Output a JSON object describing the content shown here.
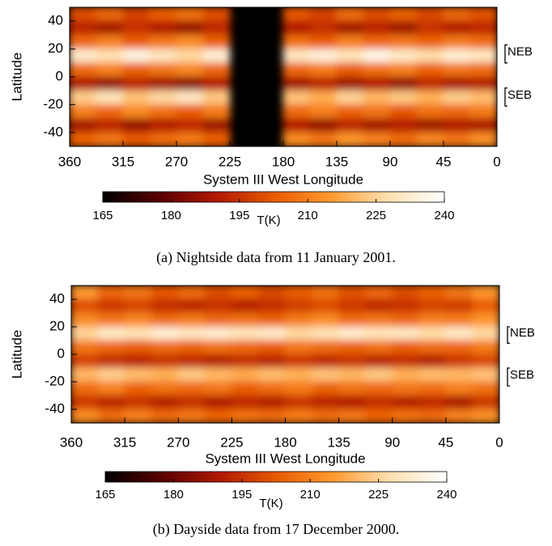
{
  "chart_data": [
    {
      "type": "heatmap",
      "caption": "(a) Nightside data from 11 January 2001.",
      "xlabel": "System III West Longitude",
      "ylabel": "Latitude",
      "x": [
        348.75,
        326.25,
        303.75,
        281.25,
        258.75,
        236.25,
        213.75,
        191.25,
        168.75,
        146.25,
        123.75,
        101.25,
        78.75,
        56.25,
        33.75,
        11.25
      ],
      "y": [
        45,
        35,
        25,
        15,
        5,
        -5,
        -15,
        -25,
        -35,
        -45
      ],
      "values": [
        [
          200,
          205,
          198,
          203,
          207,
          200,
          null,
          null,
          202,
          198,
          206,
          200,
          204,
          199,
          205,
          201
        ],
        [
          192,
          188,
          195,
          190,
          186,
          193,
          null,
          null,
          190,
          194,
          188,
          192,
          187,
          195,
          190,
          193
        ],
        [
          205,
          210,
          203,
          208,
          212,
          204,
          null,
          null,
          207,
          203,
          210,
          205,
          208,
          204,
          209,
          206
        ],
        [
          232,
          228,
          235,
          230,
          226,
          233,
          null,
          null,
          230,
          234,
          229,
          236,
          231,
          227,
          233,
          230
        ],
        [
          206,
          210,
          204,
          208,
          211,
          205,
          null,
          null,
          205,
          209,
          203,
          207,
          210,
          204,
          208,
          206
        ],
        [
          190,
          186,
          192,
          188,
          185,
          191,
          null,
          null,
          188,
          192,
          187,
          190,
          186,
          193,
          189,
          191
        ],
        [
          224,
          229,
          222,
          226,
          230,
          223,
          null,
          null,
          222,
          218,
          225,
          220,
          223,
          219,
          224,
          221
        ],
        [
          210,
          205,
          212,
          207,
          203,
          209,
          null,
          null,
          206,
          210,
          204,
          208,
          202,
          207,
          205,
          209
        ],
        [
          188,
          192,
          186,
          190,
          193,
          187,
          null,
          null,
          190,
          186,
          192,
          188,
          191,
          187,
          190,
          189
        ],
        [
          204,
          208,
          202,
          206,
          209,
          203,
          null,
          null,
          212,
          208,
          214,
          210,
          206,
          211,
          208,
          213
        ]
      ],
      "xlim": [
        360,
        0
      ],
      "ylim": [
        -50,
        50
      ],
      "xticks": [
        360,
        315,
        270,
        225,
        180,
        135,
        90,
        45,
        0
      ],
      "yticks": [
        -40,
        -20,
        0,
        20,
        40
      ],
      "colorbar": {
        "label": "T(K)",
        "lim": [
          165,
          240
        ],
        "ticks": [
          165,
          180,
          195,
          210,
          225,
          240
        ]
      },
      "colormap": [
        "#000000",
        "#5a0000",
        "#b01800",
        "#e85a00",
        "#ff9a30",
        "#ffe0b0",
        "#ffffff"
      ],
      "annotations": [
        {
          "text": "NEB",
          "range": [
            10,
            23
          ]
        },
        {
          "text": "SEB",
          "range": [
            -21,
            -8
          ]
        }
      ]
    },
    {
      "type": "heatmap",
      "caption": "(b) Dayside data from 17 December 2000.",
      "xlabel": "System III West Longitude",
      "ylabel": "Latitude",
      "x": [
        348.75,
        326.25,
        303.75,
        281.25,
        258.75,
        236.25,
        213.75,
        191.25,
        168.75,
        146.25,
        123.75,
        101.25,
        78.75,
        56.25,
        33.75,
        11.25
      ],
      "y": [
        45,
        35,
        25,
        15,
        5,
        -5,
        -15,
        -25,
        -35,
        -45
      ],
      "values": [
        [
          215,
          205,
          208,
          202,
          206,
          200,
          204,
          199,
          203,
          207,
          201,
          205,
          200,
          204,
          208,
          214
        ],
        [
          200,
          196,
          198,
          194,
          192,
          195,
          191,
          194,
          197,
          200,
          196,
          193,
          195,
          198,
          197,
          203
        ],
        [
          212,
          208,
          211,
          206,
          209,
          205,
          207,
          204,
          209,
          212,
          206,
          208,
          205,
          210,
          209,
          214
        ],
        [
          225,
          231,
          228,
          233,
          230,
          232,
          229,
          231,
          226,
          228,
          232,
          229,
          230,
          227,
          231,
          226
        ],
        [
          208,
          205,
          203,
          206,
          204,
          207,
          205,
          203,
          208,
          206,
          204,
          207,
          203,
          206,
          205,
          209
        ],
        [
          198,
          194,
          192,
          195,
          193,
          191,
          194,
          192,
          196,
          193,
          195,
          192,
          194,
          191,
          196,
          199
        ],
        [
          220,
          224,
          221,
          219,
          223,
          220,
          218,
          221,
          219,
          222,
          220,
          223,
          219,
          221,
          220,
          222
        ],
        [
          206,
          210,
          204,
          207,
          205,
          208,
          203,
          206,
          209,
          204,
          207,
          205,
          208,
          206,
          210,
          207
        ],
        [
          196,
          192,
          195,
          191,
          194,
          190,
          193,
          191,
          195,
          192,
          190,
          194,
          191,
          193,
          189,
          196
        ],
        [
          212,
          206,
          210,
          205,
          208,
          204,
          207,
          205,
          209,
          206,
          208,
          204,
          207,
          205,
          210,
          213
        ]
      ],
      "xlim": [
        360,
        0
      ],
      "ylim": [
        -50,
        50
      ],
      "xticks": [
        360,
        315,
        270,
        225,
        180,
        135,
        90,
        45,
        0
      ],
      "yticks": [
        -40,
        -20,
        0,
        20,
        40
      ],
      "colorbar": {
        "label": "T(K)",
        "lim": [
          165,
          240
        ],
        "ticks": [
          165,
          180,
          195,
          210,
          225,
          240
        ]
      },
      "colormap": [
        "#000000",
        "#5a0000",
        "#b01800",
        "#e85a00",
        "#ff9a30",
        "#ffe0b0",
        "#ffffff"
      ],
      "annotations": [
        {
          "text": "NEB",
          "range": [
            8,
            20
          ]
        },
        {
          "text": "SEB",
          "range": [
            -23,
            -10
          ]
        }
      ]
    }
  ]
}
